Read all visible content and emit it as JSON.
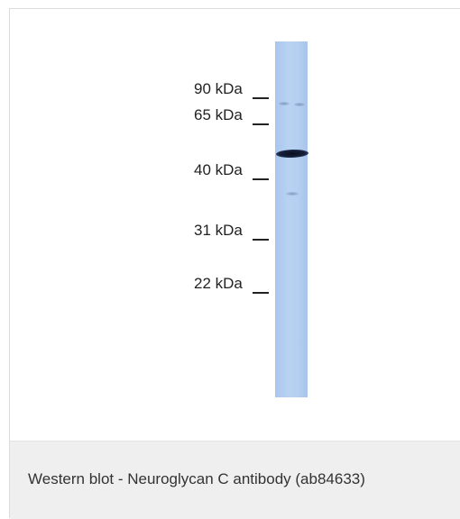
{
  "markers": [
    {
      "label": "90 kDa"
    },
    {
      "label": "65 kDa"
    },
    {
      "label": "40 kDa"
    },
    {
      "label": "31 kDa"
    },
    {
      "label": "22 kDa"
    }
  ],
  "caption": "Western blot - Neuroglycan C antibody (ab84633)",
  "colors": {
    "lane": "#b5cff1",
    "band": "#15203a",
    "caption_background": "#efefef"
  }
}
